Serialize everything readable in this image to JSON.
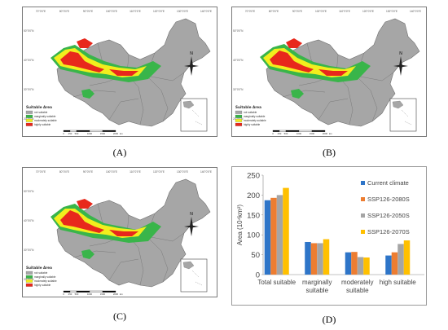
{
  "panel_labels": [
    "(A)",
    "(B)",
    "(C)",
    "(D)"
  ],
  "map": {
    "lon_ticks": [
      "70°0'0\"E",
      "80°0'0\"E",
      "90°0'0\"E",
      "100°0'0\"E",
      "110°0'0\"E",
      "120°0'0\"E",
      "130°0'0\"E",
      "140°0'0\"E"
    ],
    "lat_ticks": [
      "50°0'0\"N",
      "40°0'0\"N",
      "30°0'0\"N",
      "20°0'0\"N"
    ],
    "north_label": "N",
    "legend_title": "Suitable Area",
    "legend_items": [
      {
        "label": "not suitable",
        "color": "#a6a6a6"
      },
      {
        "label": "marginally suitable",
        "color": "#39b54a"
      },
      {
        "label": "moderately suitable",
        "color": "#f2ee1d"
      },
      {
        "label": "highly suitable",
        "color": "#e8281c"
      }
    ],
    "scale_labels": [
      "0",
      "250",
      "500",
      "1000",
      "1500",
      "2000"
    ],
    "scale_unit": "km"
  },
  "chart_data": {
    "type": "bar",
    "categories": [
      "Total suitable",
      "marginally\nsuitable",
      "moderately\nsuitable",
      "high suitable"
    ],
    "series": [
      {
        "name": "Current climate",
        "color": "#2e75c8",
        "values": [
          187,
          82,
          56,
          48
        ]
      },
      {
        "name": "SSP126-2080S",
        "color": "#ed7d31",
        "values": [
          193,
          79,
          57,
          56
        ]
      },
      {
        "name": "SSP126-2050S",
        "color": "#a5a5a5",
        "values": [
          200,
          79,
          44,
          77
        ]
      },
      {
        "name": "SSP126-2070S",
        "color": "#ffc000",
        "values": [
          218,
          89,
          43,
          86
        ]
      }
    ],
    "ylabel": "Area (10⁴km²)",
    "yticks": [
      0,
      50,
      100,
      150,
      200,
      250
    ],
    "ylim": [
      0,
      250
    ],
    "legend_position": "top-right"
  }
}
